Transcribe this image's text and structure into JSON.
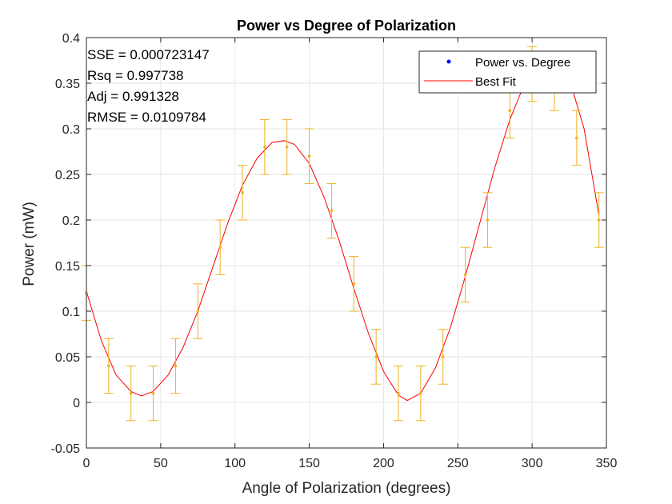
{
  "chart_data": {
    "type": "scatter",
    "title": "Power vs Degree of Polarization",
    "xlabel": "Angle of Polarization (degrees)",
    "ylabel": "Power (mW)",
    "xlim": [
      0,
      350
    ],
    "ylim": [
      -0.05,
      0.4
    ],
    "xticks": [
      0,
      50,
      100,
      150,
      200,
      250,
      300,
      350
    ],
    "yticks": [
      -0.05,
      0,
      0.05,
      0.1,
      0.15,
      0.2,
      0.25,
      0.3,
      0.35,
      0.4
    ],
    "grid": true,
    "legend_position": "top-right",
    "series": [
      {
        "name": "Power vs. Degree",
        "kind": "points-with-errorbars",
        "color": "#EDB120",
        "legend_color": "#0000FF",
        "x": [
          0,
          15,
          30,
          45,
          60,
          75,
          90,
          105,
          120,
          135,
          150,
          165,
          180,
          195,
          210,
          225,
          240,
          255,
          270,
          285,
          300,
          315,
          330,
          345
        ],
        "y": [
          0.12,
          0.04,
          0.01,
          0.01,
          0.04,
          0.1,
          0.17,
          0.23,
          0.28,
          0.28,
          0.27,
          0.21,
          0.13,
          0.05,
          0.01,
          0.01,
          0.05,
          0.14,
          0.2,
          0.32,
          0.36,
          0.35,
          0.29,
          0.2
        ],
        "error": 0.03
      },
      {
        "name": "Best Fit",
        "kind": "line",
        "color": "#FF0000",
        "x": [
          0,
          10,
          20,
          30,
          37,
          45,
          55,
          65,
          75,
          85,
          95,
          105,
          115,
          125,
          133,
          140,
          150,
          160,
          170,
          180,
          190,
          200,
          210,
          216,
          225,
          235,
          245,
          255,
          265,
          275,
          285,
          295,
          305,
          315,
          325,
          335,
          345
        ],
        "y": [
          0.122,
          0.068,
          0.03,
          0.012,
          0.007,
          0.012,
          0.03,
          0.06,
          0.1,
          0.148,
          0.196,
          0.238,
          0.268,
          0.285,
          0.287,
          0.283,
          0.262,
          0.225,
          0.178,
          0.125,
          0.075,
          0.034,
          0.008,
          0.002,
          0.01,
          0.038,
          0.082,
          0.138,
          0.198,
          0.258,
          0.31,
          0.35,
          0.373,
          0.375,
          0.355,
          0.3,
          0.205
        ]
      }
    ],
    "annotations": [
      "SSE = 0.000723147",
      "Rsq = 0.997738",
      "Adj = 0.991328",
      "RMSE = 0.0109784"
    ]
  }
}
